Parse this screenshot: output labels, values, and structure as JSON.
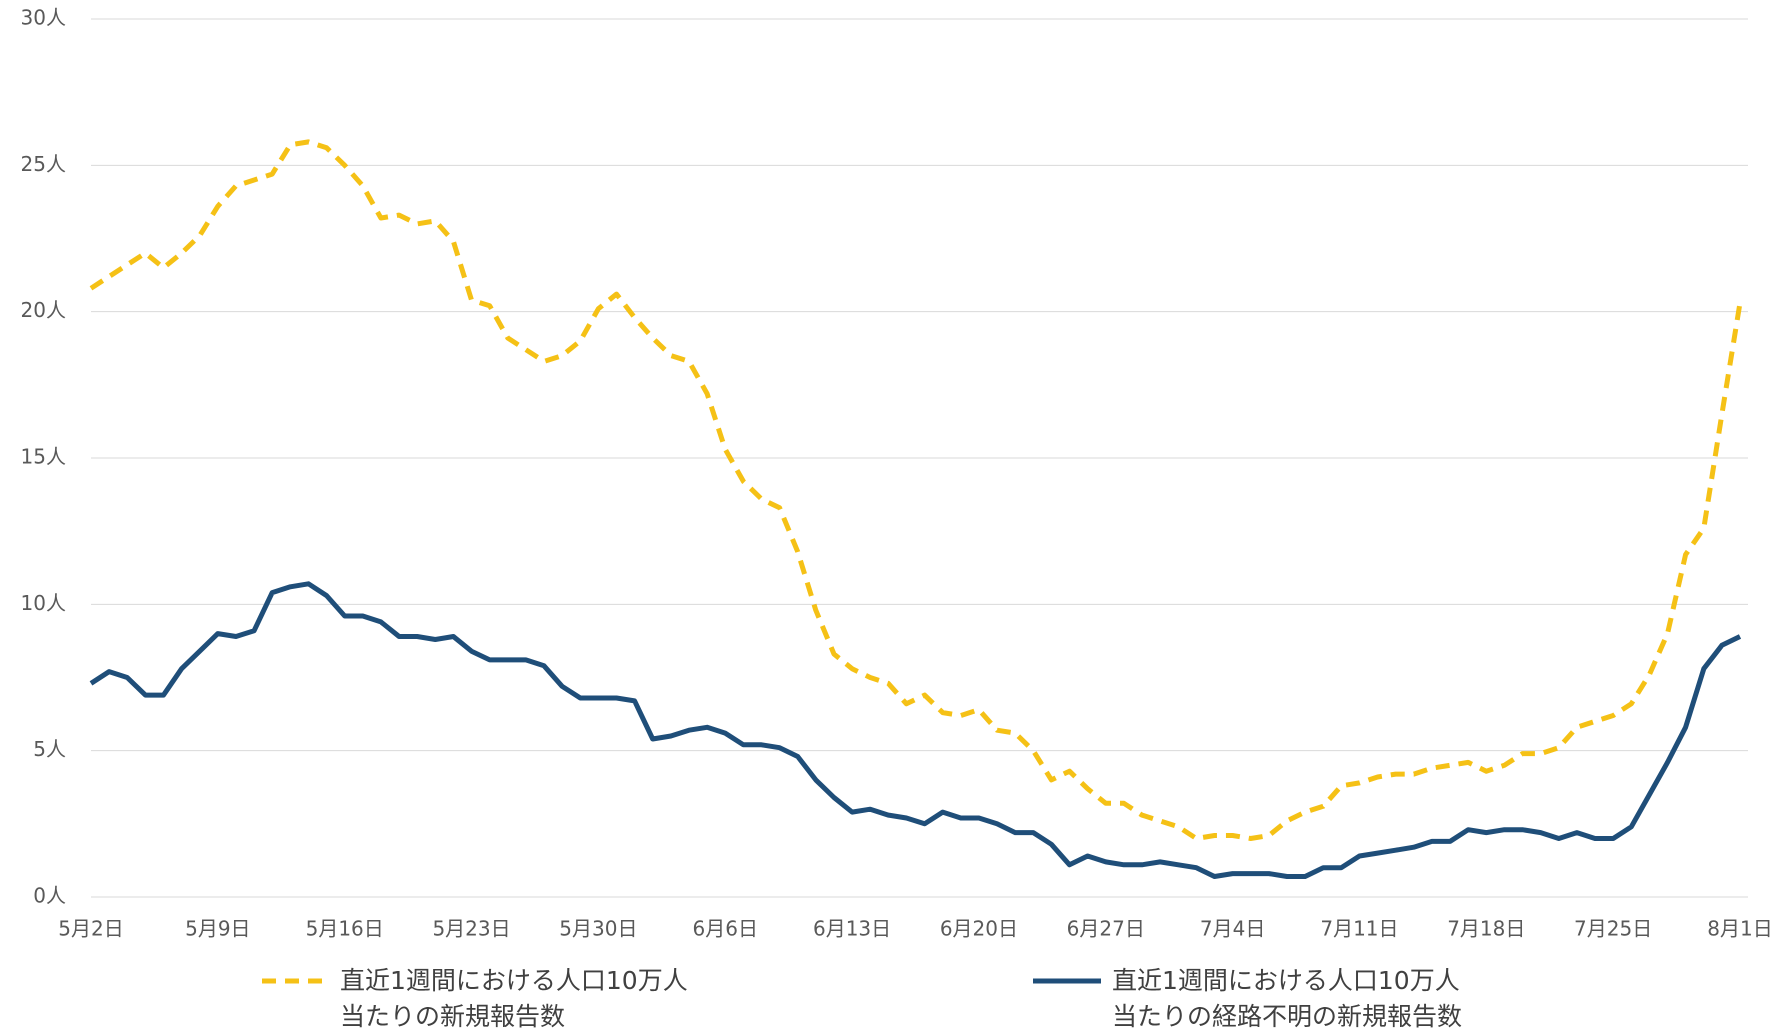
{
  "chart_data": {
    "type": "line",
    "categories": [
      "5月2日",
      null,
      null,
      null,
      null,
      null,
      null,
      "5月9日",
      null,
      null,
      null,
      null,
      null,
      null,
      "5月16日",
      null,
      null,
      null,
      null,
      null,
      null,
      "5月23日",
      null,
      null,
      null,
      null,
      null,
      null,
      "5月30日",
      null,
      null,
      null,
      null,
      null,
      null,
      "6月6日",
      null,
      null,
      null,
      null,
      null,
      null,
      "6月13日",
      null,
      null,
      null,
      null,
      null,
      null,
      "6月20日",
      null,
      null,
      null,
      null,
      null,
      null,
      "6月27日",
      null,
      null,
      null,
      null,
      null,
      null,
      "7月4日",
      null,
      null,
      null,
      null,
      null,
      null,
      "7月11日",
      null,
      null,
      null,
      null,
      null,
      null,
      "7月18日",
      null,
      null,
      null,
      null,
      null,
      null,
      "7月25日",
      null,
      null,
      null,
      null,
      null,
      null,
      "8月1日"
    ],
    "series": [
      {
        "name": "直近1週間における人口10万人\n当たりの新規報告数",
        "color": "#f5c116",
        "dashed": true,
        "values": [
          20.8,
          21.2,
          21.6,
          22.0,
          21.5,
          22.0,
          22.6,
          23.6,
          24.3,
          24.5,
          24.7,
          25.7,
          25.8,
          25.6,
          25.0,
          24.3,
          23.2,
          23.3,
          23.0,
          23.1,
          22.4,
          20.4,
          20.2,
          19.1,
          18.7,
          18.3,
          18.5,
          19.0,
          20.1,
          20.6,
          19.8,
          19.1,
          18.5,
          18.3,
          17.2,
          15.3,
          14.2,
          13.6,
          13.3,
          11.8,
          9.8,
          8.3,
          7.8,
          7.5,
          7.3,
          6.6,
          6.9,
          6.3,
          6.2,
          6.4,
          5.7,
          5.6,
          5.0,
          4.0,
          4.3,
          3.7,
          3.2,
          3.2,
          2.8,
          2.6,
          2.4,
          2.0,
          2.1,
          2.1,
          2.0,
          2.1,
          2.6,
          2.9,
          3.1,
          3.8,
          3.9,
          4.1,
          4.2,
          4.2,
          4.4,
          4.5,
          4.6,
          4.3,
          4.5,
          4.9,
          4.9,
          5.1,
          5.8,
          6.0,
          6.2,
          6.6,
          7.6,
          9.0,
          11.7,
          12.6,
          16.5,
          20.3
        ]
      },
      {
        "name": "直近1週間における人口10万人\n当たりの経路不明の新規報告数",
        "color": "#1f4e79",
        "dashed": false,
        "values": [
          7.3,
          7.7,
          7.5,
          6.9,
          6.9,
          7.8,
          8.4,
          9.0,
          8.9,
          9.1,
          10.4,
          10.6,
          10.7,
          10.3,
          9.6,
          9.6,
          9.4,
          8.9,
          8.9,
          8.8,
          8.9,
          8.4,
          8.1,
          8.1,
          8.1,
          7.9,
          7.2,
          6.8,
          6.8,
          6.8,
          6.7,
          5.4,
          5.5,
          5.7,
          5.8,
          5.6,
          5.2,
          5.2,
          5.1,
          4.8,
          4.0,
          3.4,
          2.9,
          3.0,
          2.8,
          2.7,
          2.5,
          2.9,
          2.7,
          2.7,
          2.5,
          2.2,
          2.2,
          1.8,
          1.1,
          1.4,
          1.2,
          1.1,
          1.1,
          1.2,
          1.1,
          1.0,
          0.7,
          0.8,
          0.8,
          0.8,
          0.7,
          0.7,
          1.0,
          1.0,
          1.4,
          1.5,
          1.6,
          1.7,
          1.9,
          1.9,
          2.3,
          2.2,
          2.3,
          2.3,
          2.2,
          2.0,
          2.2,
          2.0,
          2.0,
          2.4,
          3.5,
          4.6,
          5.8,
          7.8,
          8.6,
          8.9
        ]
      }
    ],
    "ylim": [
      0,
      30
    ],
    "yticks": [
      {
        "value": 0,
        "label": "0人"
      },
      {
        "value": 5,
        "label": "5人"
      },
      {
        "value": 10,
        "label": "10人"
      },
      {
        "value": 15,
        "label": "15人"
      },
      {
        "value": 20,
        "label": "20人"
      },
      {
        "value": 25,
        "label": "25人"
      },
      {
        "value": 30,
        "label": "30人"
      }
    ],
    "grid": true
  }
}
